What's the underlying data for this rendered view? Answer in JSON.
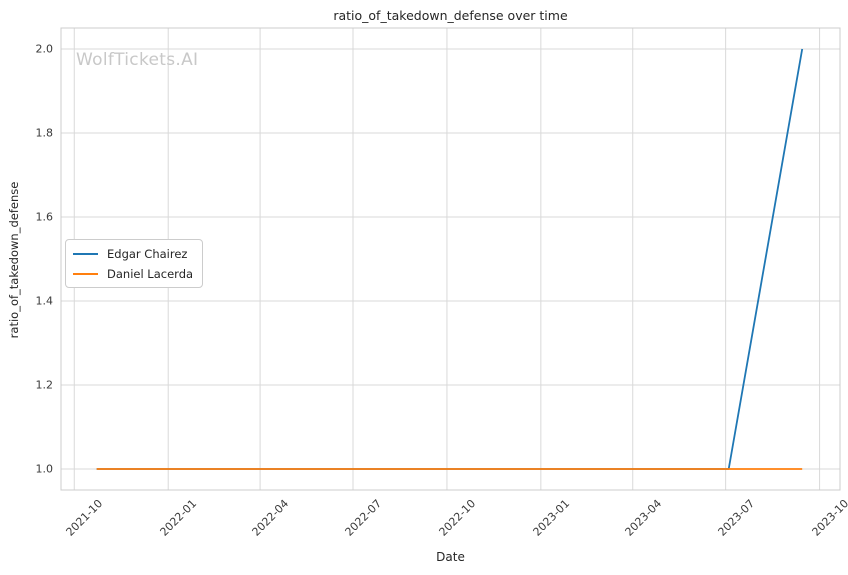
{
  "chart_data": {
    "type": "line",
    "title": "ratio_of_takedown_defense over time",
    "xlabel": "Date",
    "ylabel": "ratio_of_takedown_defense",
    "watermark": "WolfTickets.AI",
    "grid": true,
    "legend_position": "center-left",
    "xlim": [
      "2021-09-18",
      "2023-10-21"
    ],
    "ylim": [
      0.95,
      2.05
    ],
    "x_ticks": [
      {
        "value": "2021-10-01",
        "label": "2021-10"
      },
      {
        "value": "2022-01-01",
        "label": "2022-01"
      },
      {
        "value": "2022-04-01",
        "label": "2022-04"
      },
      {
        "value": "2022-07-01",
        "label": "2022-07"
      },
      {
        "value": "2022-10-01",
        "label": "2022-10"
      },
      {
        "value": "2023-01-01",
        "label": "2023-01"
      },
      {
        "value": "2023-04-01",
        "label": "2023-04"
      },
      {
        "value": "2023-07-01",
        "label": "2023-07"
      },
      {
        "value": "2023-10-01",
        "label": "2023-10"
      }
    ],
    "y_ticks": [
      {
        "value": 1.0,
        "label": "1.0"
      },
      {
        "value": 1.2,
        "label": "1.2"
      },
      {
        "value": 1.4,
        "label": "1.4"
      },
      {
        "value": 1.6,
        "label": "1.6"
      },
      {
        "value": 1.8,
        "label": "1.8"
      },
      {
        "value": 2.0,
        "label": "2.0"
      }
    ],
    "series": [
      {
        "name": "Edgar Chairez",
        "color": "#1f77b4",
        "points": [
          [
            "2021-10-23",
            1.0
          ],
          [
            "2023-07-04",
            1.0
          ],
          [
            "2023-09-14",
            2.0
          ]
        ]
      },
      {
        "name": "Daniel Lacerda",
        "color": "#ff7f0e",
        "points": [
          [
            "2021-10-23",
            1.0
          ],
          [
            "2023-09-14",
            1.0
          ]
        ]
      }
    ],
    "colors": {
      "grid": "#d9d9d9",
      "spine": "#cccccc",
      "text": "#262626",
      "tick_text": "#3a3a3a",
      "watermark": "#c8c8c8",
      "background": "#ffffff"
    }
  }
}
